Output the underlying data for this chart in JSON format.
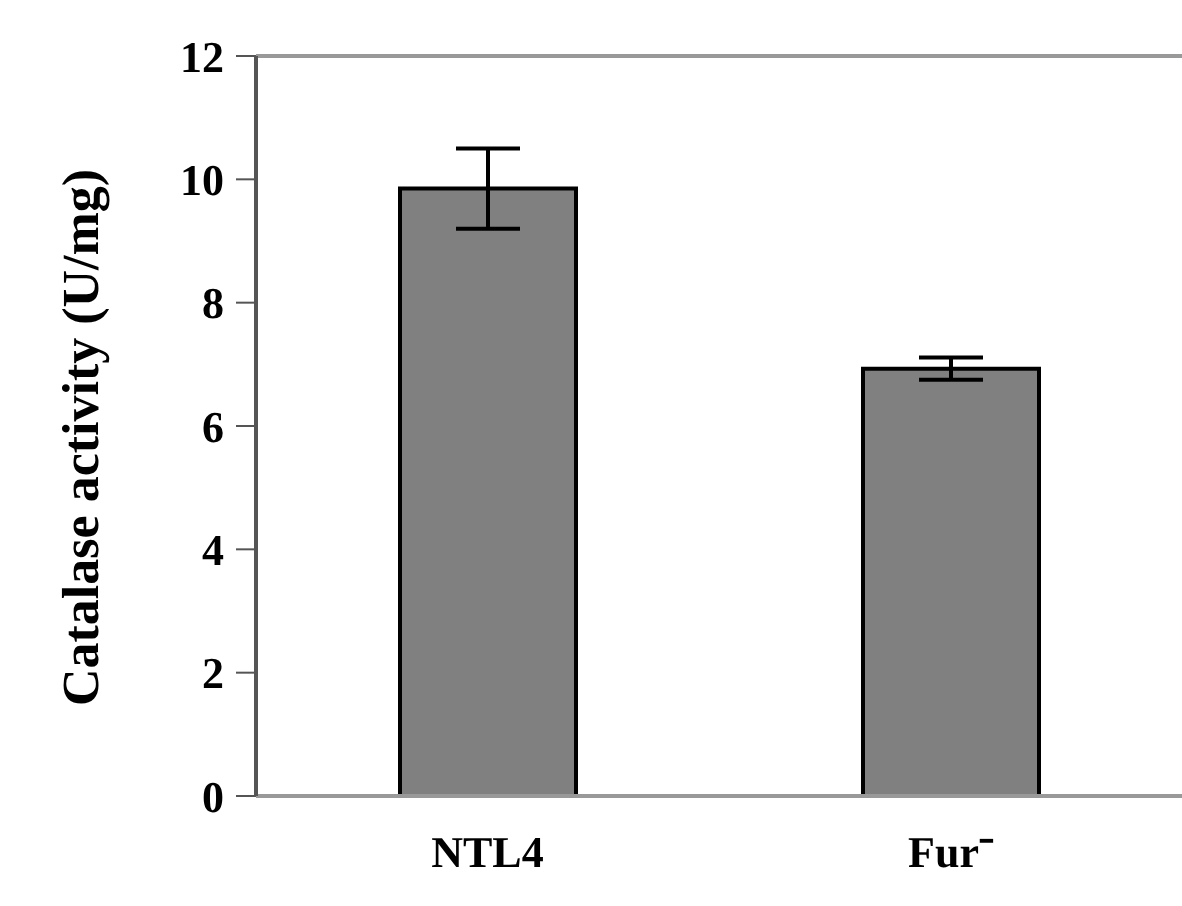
{
  "chart_data": {
    "type": "bar",
    "ylabel": "Catalase activity (U/mg)",
    "categories": [
      "NTL4",
      "Fur⁻"
    ],
    "values": [
      9.85,
      6.93
    ],
    "errors": [
      0.65,
      0.18
    ],
    "color": "#808080",
    "ylim": [
      0,
      12
    ],
    "yticks": [
      0,
      2,
      4,
      6,
      8,
      10,
      12
    ],
    "grid": false,
    "legend": false
  }
}
